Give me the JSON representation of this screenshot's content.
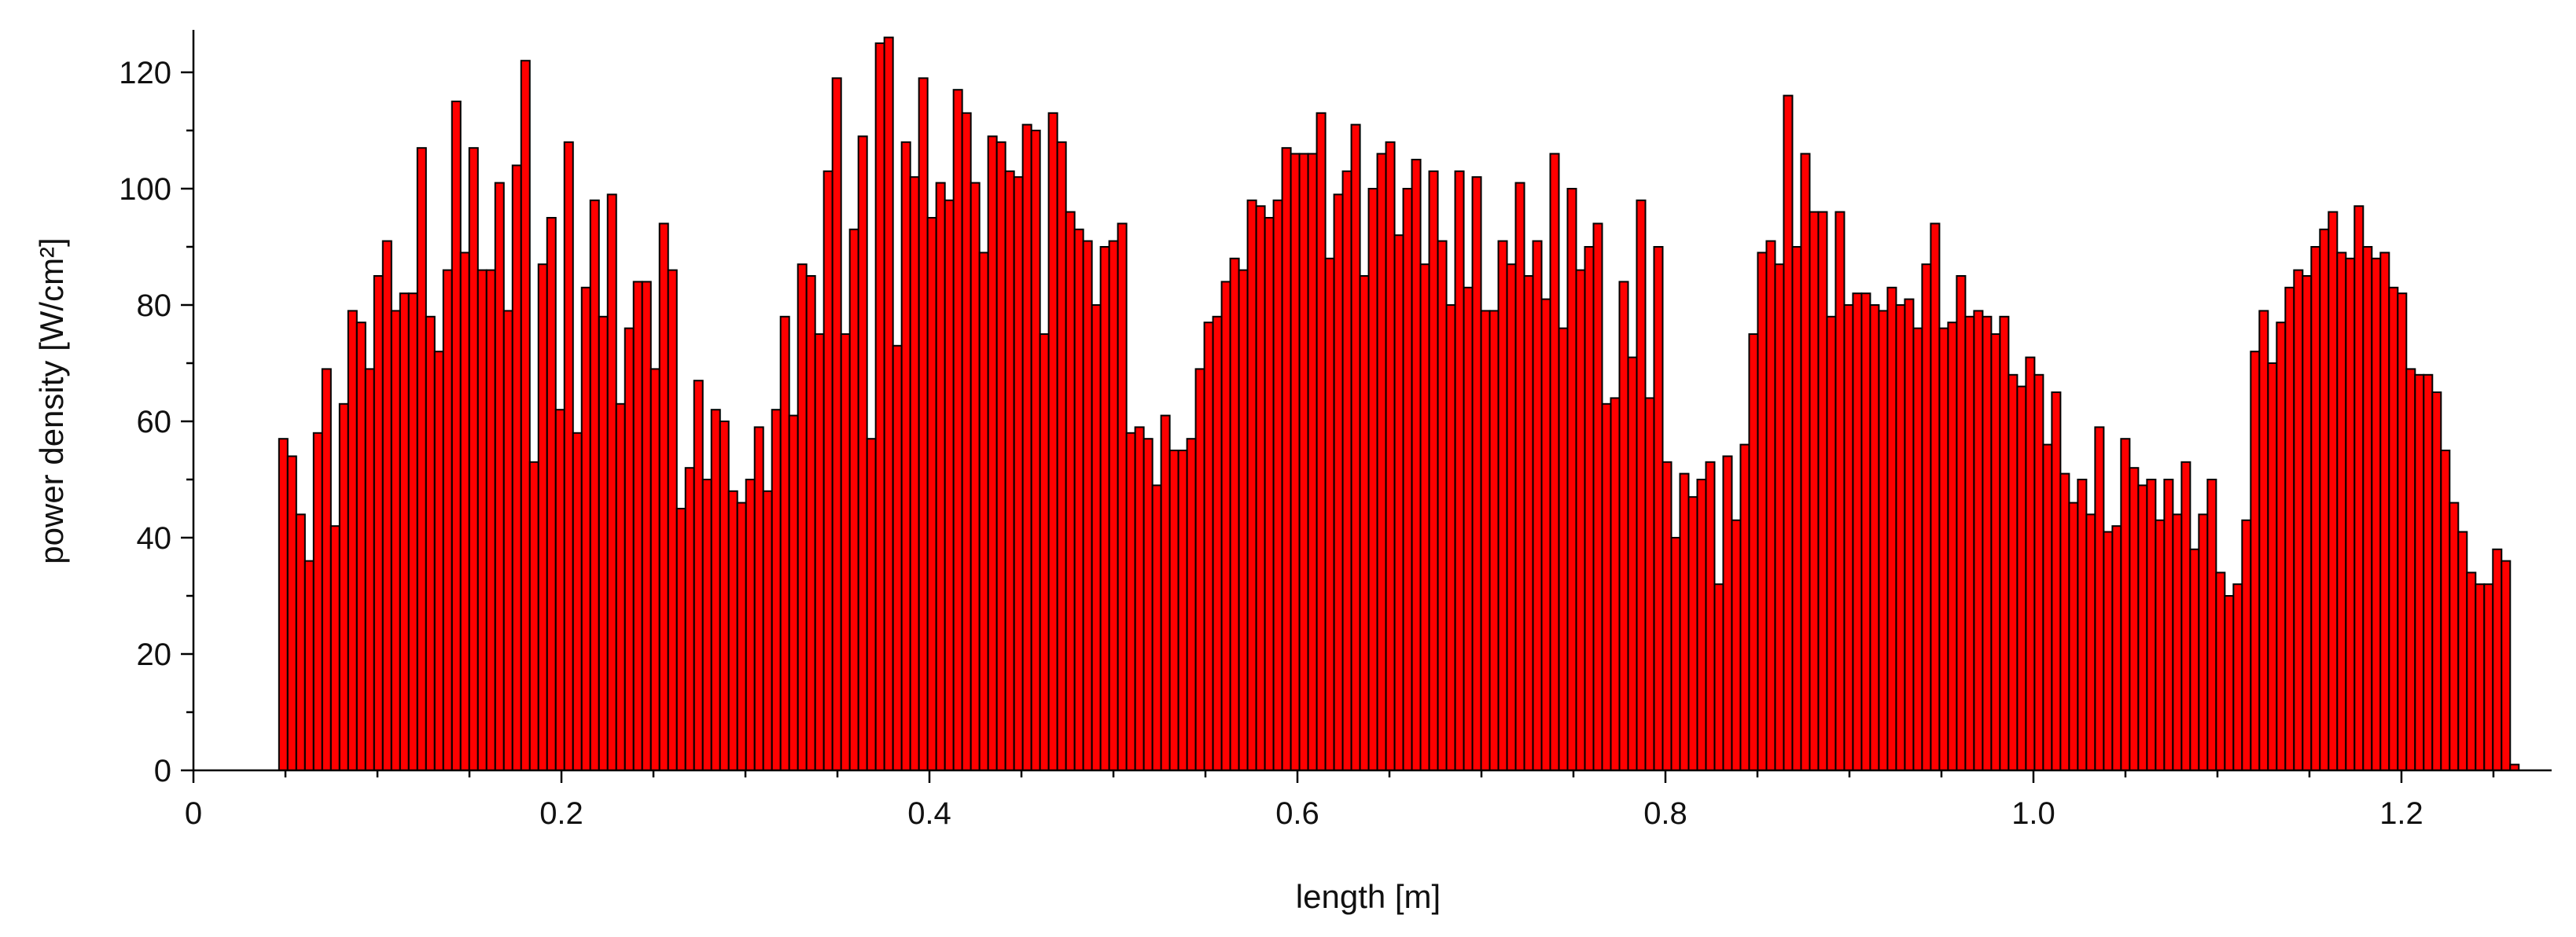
{
  "chart_data": {
    "type": "bar",
    "xlabel": "length [m]",
    "ylabel": "power density [W/cm²]",
    "xlim": [
      0,
      1.275
    ],
    "ylim": [
      0,
      128
    ],
    "x_ticks": [
      "0",
      "0.2",
      "0.4",
      "0.6",
      "0.8",
      "1.0",
      "1.2"
    ],
    "y_ticks": [
      "0",
      "20",
      "40",
      "60",
      "80",
      "100",
      "120"
    ],
    "bar_color": "#ff0000",
    "bar_edge_color": "#000000",
    "bin_width_m": 0.0047,
    "x_start_m": 0.0465,
    "values": [
      57,
      54,
      44,
      36,
      58,
      69,
      42,
      63,
      79,
      77,
      69,
      85,
      91,
      79,
      82,
      82,
      107,
      78,
      72,
      86,
      115,
      89,
      107,
      86,
      86,
      101,
      79,
      104,
      122,
      53,
      87,
      95,
      62,
      108,
      58,
      83,
      98,
      78,
      99,
      63,
      76,
      84,
      84,
      69,
      94,
      86,
      45,
      52,
      67,
      50,
      62,
      60,
      48,
      46,
      50,
      59,
      48,
      62,
      78,
      61,
      87,
      85,
      75,
      103,
      119,
      75,
      93,
      109,
      57,
      125,
      126,
      73,
      108,
      102,
      119,
      95,
      101,
      98,
      117,
      113,
      101,
      89,
      109,
      108,
      103,
      102,
      111,
      110,
      75,
      113,
      108,
      96,
      93,
      91,
      80,
      90,
      91,
      94,
      58,
      59,
      57,
      49,
      61,
      55,
      55,
      57,
      69,
      77,
      78,
      84,
      88,
      86,
      98,
      97,
      95,
      98,
      107,
      106,
      106,
      106,
      113,
      88,
      99,
      103,
      111,
      85,
      100,
      106,
      108,
      92,
      100,
      105,
      87,
      103,
      91,
      80,
      103,
      83,
      102,
      79,
      79,
      91,
      87,
      101,
      85,
      91,
      81,
      106,
      76,
      100,
      86,
      90,
      94,
      63,
      64,
      84,
      71,
      98,
      64,
      90,
      53,
      40,
      51,
      47,
      50,
      53,
      32,
      54,
      43,
      56,
      75,
      89,
      91,
      87,
      116,
      90,
      106,
      96,
      96,
      78,
      96,
      80,
      82,
      82,
      80,
      79,
      83,
      80,
      81,
      76,
      87,
      94,
      76,
      77,
      85,
      78,
      79,
      78,
      75,
      78,
      68,
      66,
      71,
      68,
      56,
      65,
      51,
      46,
      50,
      44,
      59,
      41,
      42,
      57,
      52,
      49,
      50,
      43,
      50,
      44,
      53,
      38,
      44,
      50,
      34,
      30,
      32,
      43,
      72,
      79,
      70,
      77,
      83,
      86,
      85,
      90,
      93,
      96,
      89,
      88,
      97,
      90,
      88,
      89,
      83,
      82,
      69,
      68,
      68,
      65,
      55,
      46,
      41,
      34,
      32,
      32,
      38,
      36,
      1,
      0,
      0,
      0,
      0,
      0,
      0,
      0
    ]
  }
}
